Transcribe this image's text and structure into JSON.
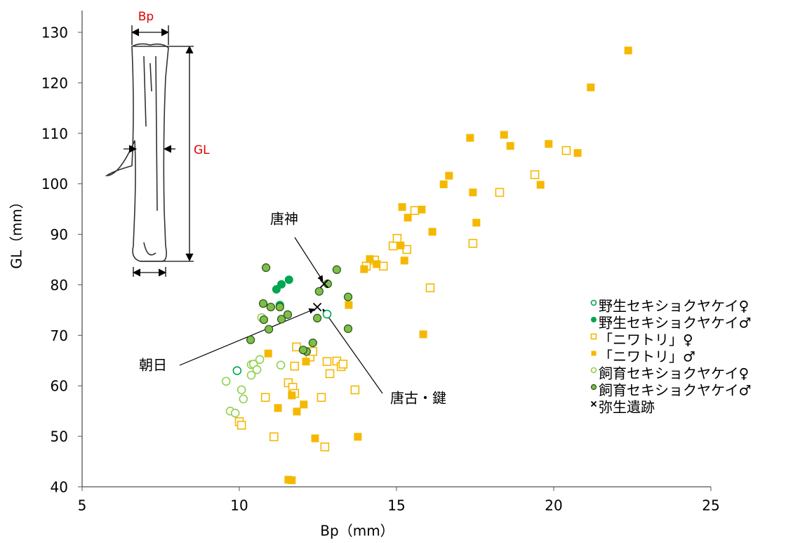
{
  "chart_data": {
    "type": "scatter",
    "x_label": "Bp（mm）",
    "y_label": "GL（mm）",
    "xlim": [
      5,
      25
    ],
    "xticks": [
      5,
      10,
      15,
      20,
      25
    ],
    "ylim": [
      40,
      130
    ],
    "yticks": [
      40,
      50,
      60,
      70,
      80,
      90,
      100,
      110,
      120,
      130
    ],
    "grid": false,
    "legend": "right",
    "illustration_labels": {
      "width": "Bp",
      "length": "GL"
    },
    "annotations": [
      "唐神",
      "朝日",
      "唐古・鍵"
    ],
    "series": [
      {
        "name": "野生セキショクヤケイ♀",
        "marker": "circle-open",
        "color": "#00a651",
        "x": [
          9.93,
          12.79
        ],
        "values": [
          63.0,
          74.2
        ]
      },
      {
        "name": "野生セキショクヤケイ♂",
        "marker": "circle-filled",
        "color": "#00a651",
        "x": [
          11.18,
          11.34,
          11.58,
          11.29
        ],
        "values": [
          79.1,
          80.1,
          81.0,
          76.0
        ]
      },
      {
        "name": "「ニワトリ」♀",
        "marker": "square-open",
        "color": "#f5b800",
        "x": [
          10.0,
          10.07,
          11.1,
          10.83,
          11.56,
          11.7,
          11.76,
          11.82,
          11.76,
          12.25,
          12.34,
          12.79,
          12.88,
          13.1,
          13.24,
          13.3,
          12.72,
          12.61,
          13.68,
          14.04,
          14.3,
          14.58,
          14.89,
          15.02,
          15.33,
          15.58,
          16.07,
          17.43,
          18.28,
          19.4,
          20.4
        ],
        "values": [
          52.9,
          52.2,
          49.9,
          57.7,
          60.6,
          59.7,
          63.9,
          67.7,
          58.5,
          65.7,
          66.8,
          64.8,
          62.4,
          64.9,
          63.8,
          64.3,
          47.9,
          57.7,
          59.2,
          83.7,
          84.9,
          83.7,
          87.7,
          89.2,
          87.0,
          94.7,
          79.4,
          88.2,
          98.3,
          101.8,
          106.6
        ]
      },
      {
        "name": "「ニワトリ」♂",
        "marker": "square-filled",
        "color": "#f5b800",
        "x": [
          11.56,
          11.67,
          10.92,
          11.23,
          11.83,
          12.05,
          12.12,
          12.41,
          11.67,
          13.77,
          13.48,
          13.97,
          14.15,
          14.37,
          15.18,
          15.13,
          15.36,
          15.25,
          15.8,
          15.85,
          16.14,
          16.5,
          16.67,
          17.43,
          17.54,
          17.34,
          18.42,
          18.62,
          19.58,
          19.84,
          20.76,
          21.18,
          22.37
        ],
        "values": [
          41.4,
          41.3,
          66.4,
          55.6,
          54.9,
          56.3,
          64.8,
          49.6,
          58.1,
          49.9,
          76.0,
          83.1,
          85.1,
          84.1,
          95.4,
          87.8,
          93.3,
          84.8,
          94.9,
          70.2,
          90.5,
          99.9,
          101.6,
          98.3,
          92.3,
          109.1,
          109.7,
          107.5,
          99.8,
          107.9,
          106.1,
          119.1,
          126.4
        ]
      },
      {
        "name": "飼育セキショクヤケイ♀",
        "marker": "circle-open",
        "color": "#92d050",
        "x": [
          9.58,
          9.71,
          9.87,
          10.07,
          10.13,
          10.38,
          10.45,
          10.56,
          10.65,
          10.38,
          10.71,
          11.32
        ],
        "values": [
          60.9,
          55.0,
          54.6,
          59.2,
          57.4,
          64.2,
          64.3,
          63.2,
          65.2,
          62.1,
          73.5,
          64.1
        ]
      },
      {
        "name": "飼育セキショクヤケイ♂",
        "marker": "circle-edged",
        "color": "#7dbf4a",
        "x": [
          10.85,
          10.76,
          10.78,
          11.0,
          11.29,
          11.34,
          11.54,
          10.94,
          10.36,
          12.14,
          12.34,
          12.48,
          12.54,
          12.81,
          13.1,
          13.46,
          13.46,
          12.03
        ],
        "values": [
          83.4,
          76.3,
          73.1,
          75.6,
          75.6,
          73.2,
          74.1,
          71.2,
          69.1,
          66.8,
          68.5,
          73.4,
          78.7,
          80.2,
          83.0,
          77.6,
          71.3,
          67.1
        ]
      },
      {
        "name": "弥生遺跡",
        "marker": "cross",
        "color": "#000000",
        "x": [
          12.7,
          12.48
        ],
        "values": [
          80.2,
          75.6
        ]
      }
    ]
  }
}
